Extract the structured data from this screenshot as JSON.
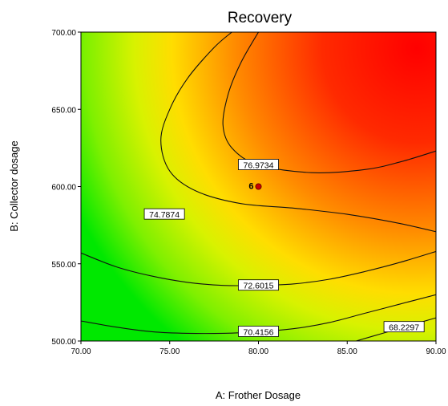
{
  "chart_data": {
    "type": "contour",
    "title": "Recovery",
    "xlabel": "A: Frother Dosage",
    "ylabel": "B: Collector dosage",
    "xlim": [
      70,
      90
    ],
    "ylim": [
      500,
      700
    ],
    "xticks": [
      "70.00",
      "75.00",
      "80.00",
      "85.00",
      "90.00"
    ],
    "yticks": [
      "500.00",
      "550.00",
      "600.00",
      "650.00",
      "700.00"
    ],
    "contour_levels": [
      {
        "label": "68.2297",
        "value": 68.2297,
        "path": [
          [
            85.5,
            500
          ],
          [
            87,
            505
          ],
          [
            88.5,
            510
          ],
          [
            90,
            515
          ]
        ]
      },
      {
        "label": "70.4156",
        "value": 70.4156,
        "path": [
          [
            70,
            513
          ],
          [
            72,
            509
          ],
          [
            74,
            506
          ],
          [
            76,
            505
          ],
          [
            78,
            505
          ],
          [
            80,
            506
          ],
          [
            82,
            508
          ],
          [
            84,
            512
          ],
          [
            86,
            518
          ],
          [
            88,
            524
          ],
          [
            90,
            530
          ]
        ]
      },
      {
        "label": "72.6015",
        "value": 72.6015,
        "path": [
          [
            70,
            557
          ],
          [
            72,
            548
          ],
          [
            74,
            542
          ],
          [
            76,
            538
          ],
          [
            78,
            536
          ],
          [
            80,
            536
          ],
          [
            82,
            537
          ],
          [
            84,
            540
          ],
          [
            86,
            545
          ],
          [
            88,
            551
          ],
          [
            90,
            558
          ]
        ]
      },
      {
        "label": "74.7874",
        "value": 74.7874,
        "path": [
          [
            94,
            560
          ],
          [
            91,
            568
          ],
          [
            88,
            576
          ],
          [
            85,
            582
          ],
          [
            82,
            586
          ],
          [
            79,
            589
          ],
          [
            76.5,
            597
          ],
          [
            75,
            610
          ],
          [
            74.5,
            630
          ],
          [
            75,
            650
          ],
          [
            76,
            670
          ],
          [
            77.5,
            690
          ],
          [
            78.5,
            700
          ]
        ]
      },
      {
        "label": "76.9734",
        "value": 76.9734,
        "path": [
          [
            90,
            623
          ],
          [
            88,
            616
          ],
          [
            86,
            611
          ],
          [
            83,
            609
          ],
          [
            80,
            614
          ],
          [
            78.5,
            625
          ],
          [
            78,
            640
          ],
          [
            78.3,
            660
          ],
          [
            79,
            680
          ],
          [
            80,
            700
          ]
        ]
      }
    ],
    "design_point": {
      "x": 80,
      "y": 600,
      "label": "6"
    },
    "colormap": [
      "#00ee00",
      "#ffff00",
      "#ff8800",
      "#ff0000"
    ]
  }
}
